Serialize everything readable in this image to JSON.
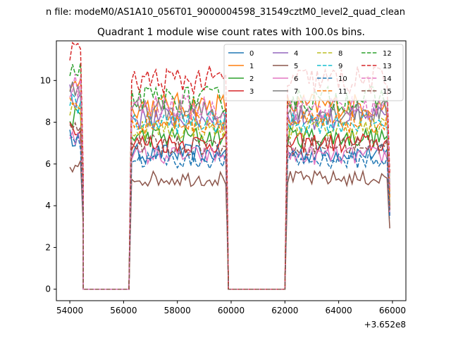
{
  "chart_data": {
    "type": "line",
    "suptitle": "n file: modeM0/AS1A10_056T01_9000004598_31549cztM0_level2_quad_clean",
    "title": "Quadrant 1 module wise count rates with 100.0s bins.",
    "xlabel": "",
    "ylabel": "",
    "offset_text": "+3.652e8",
    "xlim": [
      53500,
      66500
    ],
    "ylim": [
      -0.55,
      11.9
    ],
    "xticks": [
      54000,
      56000,
      58000,
      60000,
      62000,
      64000,
      66000
    ],
    "yticks": [
      0,
      2,
      4,
      6,
      8,
      10
    ],
    "grid": false,
    "legend_placement": "top-right",
    "legend_columns": 4,
    "segments": [
      {
        "x_start": 54000,
        "x_end": 54400,
        "gap_after": 54500
      },
      {
        "x_start": 56300,
        "x_end": 59800,
        "gap_after": 59850
      },
      {
        "x_start": 62100,
        "x_end": 65850,
        "gap_after": 65900
      }
    ],
    "gap_ranges": [
      [
        54500,
        56200
      ],
      [
        59900,
        62000
      ]
    ],
    "series": [
      {
        "name": "0",
        "color": "#1f77b4",
        "style": "solid",
        "level": 6.5
      },
      {
        "name": "1",
        "color": "#ff7f0e",
        "style": "solid",
        "level": 8.8
      },
      {
        "name": "2",
        "color": "#2ca02c",
        "style": "solid",
        "level": 7.3
      },
      {
        "name": "3",
        "color": "#d62728",
        "style": "solid",
        "level": 7.0
      },
      {
        "name": "4",
        "color": "#9467bd",
        "style": "solid",
        "level": 8.2
      },
      {
        "name": "5",
        "color": "#8c564b",
        "style": "solid",
        "level": 5.3
      },
      {
        "name": "6",
        "color": "#e377c2",
        "style": "solid",
        "level": 6.4
      },
      {
        "name": "7",
        "color": "#7f7f7f",
        "style": "solid",
        "level": 8.5
      },
      {
        "name": "8",
        "color": "#bcbd22",
        "style": "dashed",
        "level": 7.7
      },
      {
        "name": "9",
        "color": "#17becf",
        "style": "dashed",
        "level": 8.0
      },
      {
        "name": "10",
        "color": "#1f77b4",
        "style": "dashed",
        "level": 6.2
      },
      {
        "name": "11",
        "color": "#ff7f0e",
        "style": "dashed",
        "level": 8.0
      },
      {
        "name": "12",
        "color": "#2ca02c",
        "style": "dashed",
        "level": 9.1
      },
      {
        "name": "13",
        "color": "#d62728",
        "style": "dashed",
        "level": 10.0
      },
      {
        "name": "14",
        "color": "#e377c2",
        "style": "dashed",
        "level": 8.7
      },
      {
        "name": "15",
        "color": "#8c564b",
        "style": "dashed",
        "level": 6.9
      }
    ]
  }
}
